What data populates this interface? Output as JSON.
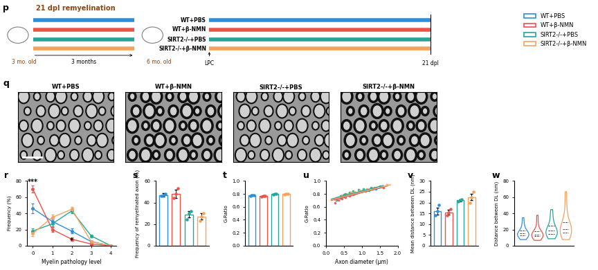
{
  "groups": [
    {
      "name": "WT+PBS",
      "color": "#2b8fd9"
    },
    {
      "name": "WT+β-NMN",
      "color": "#e8534a"
    },
    {
      "name": "SIRT2-/-+PBS",
      "color": "#26a69a"
    },
    {
      "name": "SIRT2-/-+β-NMN",
      "color": "#f5a35c"
    }
  ],
  "panel_p": {
    "letter": "p",
    "title": "21 dpl remyelination",
    "start_age": "3 mo. old",
    "duration": "3 months",
    "mid_age": "6 mo. old",
    "injection": "LPC",
    "end": "21 dpl"
  },
  "panel_q": {
    "letter": "q"
  },
  "chart_data": [
    {
      "panel": "r",
      "type": "line",
      "x_label": "Myelin pathology level",
      "y_label": "Frequency (%)",
      "x": [
        0,
        1,
        2,
        3,
        4
      ],
      "xlim": [
        -0.3,
        4.3
      ],
      "xticks": [
        0,
        1,
        2,
        3,
        4
      ],
      "ylim": [
        0,
        80
      ],
      "yticks": [
        0,
        20,
        40,
        60,
        80
      ],
      "marker": "o",
      "series": [
        {
          "name": "WT+PBS",
          "color": "#2b8fd9",
          "values": [
            46,
            30,
            18,
            5,
            0
          ],
          "errors": [
            6,
            3,
            3,
            1,
            0
          ]
        },
        {
          "name": "WT+β-NMN",
          "color": "#e8534a",
          "values": [
            70,
            20,
            8,
            2,
            0
          ],
          "errors": [
            4,
            3,
            2,
            1,
            0
          ]
        },
        {
          "name": "SIRT2-/-+PBS",
          "color": "#26a69a",
          "values": [
            18,
            27,
            43,
            12,
            0
          ],
          "errors": [
            3,
            3,
            3,
            2,
            0
          ]
        },
        {
          "name": "SIRT2-/-+β-NMN",
          "color": "#f5a35c",
          "values": [
            15,
            35,
            45,
            5,
            0
          ],
          "errors": [
            3,
            3,
            3,
            1,
            0
          ]
        }
      ],
      "annotations": [
        {
          "text": "***",
          "x": 0,
          "y": 74
        },
        {
          "text": "*",
          "x": 2,
          "y": 2
        }
      ]
    },
    {
      "panel": "s",
      "type": "bar",
      "y_label": "Frequency of remyelinated axon (%)",
      "categories": [
        null,
        null,
        null,
        null
      ],
      "tick_labels": "y",
      "colors": [
        "#2b8fd9",
        "#e8534a",
        "#26a69a",
        "#f5a35c"
      ],
      "values": [
        47,
        48,
        29,
        27
      ],
      "errors": [
        1.5,
        4,
        3,
        3
      ],
      "points": [
        [
          46,
          47,
          48
        ],
        [
          44,
          48,
          53
        ],
        [
          24,
          30,
          32
        ],
        [
          23,
          27,
          30
        ]
      ],
      "ylim": [
        0,
        60
      ],
      "yticks": [
        0,
        20,
        40,
        60
      ]
    },
    {
      "panel": "t",
      "type": "bar",
      "y_label": "G-Ratio",
      "categories": [
        null,
        null,
        null,
        null
      ],
      "tick_labels": "y",
      "colors": [
        "#2b8fd9",
        "#e8534a",
        "#26a69a",
        "#f5a35c"
      ],
      "values": [
        0.78,
        0.77,
        0.8,
        0.8
      ],
      "errors": [
        0.005,
        0.005,
        0.005,
        0.005
      ],
      "points": [
        [
          0.77,
          0.78,
          0.78
        ],
        [
          0.76,
          0.77,
          0.77
        ],
        [
          0.79,
          0.8,
          0.8
        ],
        [
          0.79,
          0.8,
          0.8
        ]
      ],
      "ylim": [
        0,
        1.0
      ],
      "yticks": [
        {
          "value": 0,
          "label": "0.0"
        },
        0.2,
        0.4,
        0.6,
        0.8,
        {
          "value": 1,
          "label": "1.0"
        }
      ]
    },
    {
      "panel": "u",
      "type": "scatter",
      "x_label": "Axon diameter (μm)",
      "y_label": "G-Ratio",
      "xlim": [
        0,
        2.0
      ],
      "xticks": [
        {
          "value": 0,
          "label": "0.0"
        },
        0.5,
        {
          "value": 1,
          "label": "1.0"
        },
        1.5,
        {
          "value": 2,
          "label": "2.0"
        }
      ],
      "ylim": [
        0,
        1.0
      ],
      "yticks": [
        {
          "value": 0,
          "label": "0.0"
        },
        0.2,
        0.4,
        0.6,
        0.8,
        {
          "value": 1,
          "label": "1.0"
        }
      ],
      "series": [
        {
          "name": "WT+PBS",
          "color": "#2b8fd9",
          "x": [
            0.3,
            0.4,
            0.5,
            0.6,
            0.7,
            0.8,
            0.9,
            1.0,
            1.2,
            1.4
          ],
          "y": [
            0.7,
            0.74,
            0.76,
            0.78,
            0.79,
            0.8,
            0.82,
            0.84,
            0.85,
            0.88
          ],
          "fit": {
            "x": [
              0.15,
              1.6
            ],
            "y": [
              0.71,
              0.9
            ]
          }
        },
        {
          "name": "WT+β-NMN",
          "color": "#e8534a",
          "x": [
            0.25,
            0.35,
            0.45,
            0.55,
            0.65,
            0.75,
            0.85,
            1.1,
            1.3,
            1.6
          ],
          "y": [
            0.66,
            0.7,
            0.73,
            0.75,
            0.77,
            0.79,
            0.81,
            0.84,
            0.87,
            0.9
          ],
          "fit": {
            "x": [
              0.15,
              1.7
            ],
            "y": [
              0.7,
              0.92
            ]
          }
        },
        {
          "name": "SIRT2-/-+PBS",
          "color": "#26a69a",
          "x": [
            0.3,
            0.4,
            0.5,
            0.55,
            0.65,
            0.75,
            0.9,
            1.05,
            1.25,
            1.5
          ],
          "y": [
            0.74,
            0.77,
            0.79,
            0.8,
            0.82,
            0.84,
            0.86,
            0.87,
            0.9,
            0.92
          ],
          "fit": {
            "x": [
              0.15,
              1.6
            ],
            "y": [
              0.72,
              0.93
            ]
          }
        },
        {
          "name": "SIRT2-/-+β-NMN",
          "color": "#f5a35c",
          "x": [
            0.25,
            0.35,
            0.45,
            0.6,
            0.7,
            0.8,
            0.95,
            1.15,
            1.35,
            1.7
          ],
          "y": [
            0.72,
            0.75,
            0.78,
            0.8,
            0.82,
            0.83,
            0.85,
            0.88,
            0.9,
            0.94
          ],
          "fit": {
            "x": [
              0.15,
              1.8
            ],
            "y": [
              0.71,
              0.94
            ]
          }
        }
      ]
    },
    {
      "panel": "v",
      "type": "bar",
      "y_label": "Mean distance between DL (nm)",
      "categories": [
        null,
        null,
        null,
        null
      ],
      "tick_labels": "y",
      "colors": [
        "#2b8fd9",
        "#e8534a",
        "#26a69a",
        "#f5a35c"
      ],
      "values": [
        16,
        15.5,
        21,
        22.5
      ],
      "errors": [
        1.5,
        1,
        0.5,
        1.5
      ],
      "points": [
        [
          14,
          16,
          19
        ],
        [
          14,
          15.5,
          17
        ],
        [
          20.5,
          21,
          21.5
        ],
        [
          20,
          22.5,
          25
        ]
      ],
      "ylim": [
        0,
        30
      ],
      "yticks": [
        0,
        5,
        10,
        15,
        20,
        25,
        30
      ]
    },
    {
      "panel": "w",
      "type": "violin",
      "y_label": "Distance between DL (nm)",
      "categories": [
        null,
        null,
        null,
        null
      ],
      "tick_labels": "y",
      "colors": [
        "#2b8fd9",
        "#e8534a",
        "#26a69a",
        "#f5a35c"
      ],
      "samples": [
        [
          8,
          10,
          11,
          12,
          13,
          14,
          14,
          15,
          15,
          16,
          17,
          18,
          20,
          24,
          28,
          35
        ],
        [
          7,
          9,
          10,
          11,
          12,
          13,
          13,
          14,
          14,
          15,
          16,
          17,
          19,
          22,
          30,
          38
        ],
        [
          9,
          11,
          12,
          14,
          15,
          16,
          17,
          18,
          19,
          20,
          22,
          24,
          27,
          32,
          38,
          45
        ],
        [
          8,
          11,
          13,
          15,
          17,
          18,
          19,
          20,
          21,
          23,
          25,
          28,
          32,
          40,
          52,
          67
        ]
      ],
      "ylim": [
        0,
        80
      ],
      "yticks": [
        0,
        20,
        40,
        60,
        80
      ]
    }
  ]
}
